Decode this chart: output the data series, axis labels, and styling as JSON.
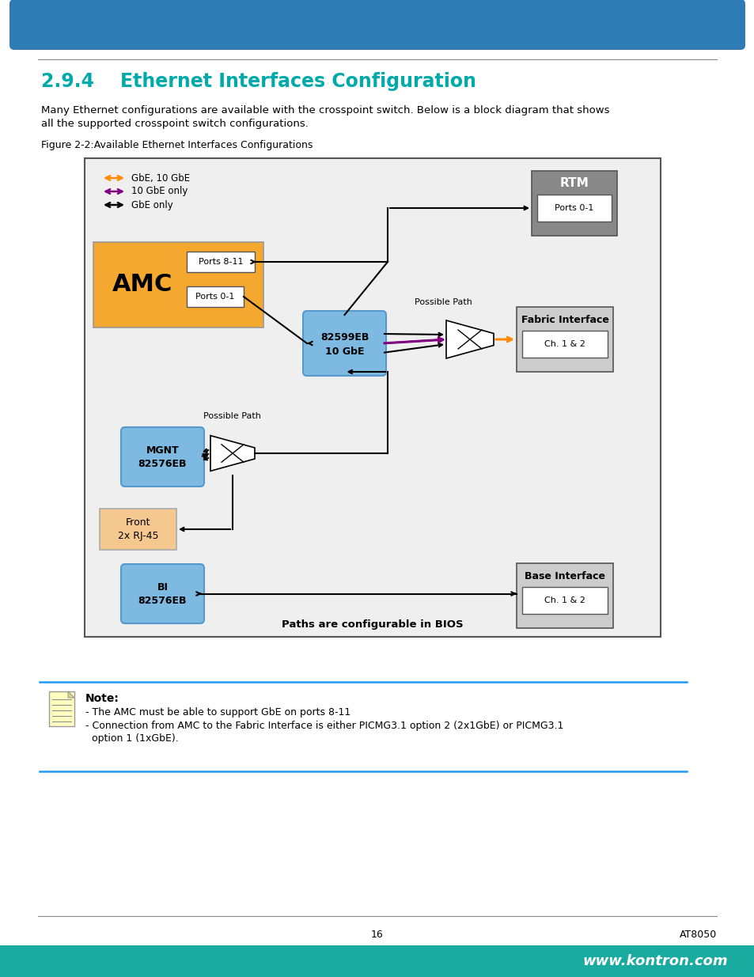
{
  "title": "2.9.4    Ethernet Interfaces Configuration",
  "title_color": "#00AAAA",
  "body_line1": "Many Ethernet configurations are available with the crosspoint switch. Below is a block diagram that shows",
  "body_line2": "all the supported crosspoint switch configurations.",
  "figure_label": "Figure 2-2:Available Ethernet Interfaces Configurations",
  "diagram_bg": "#EFEFEF",
  "legend_items": [
    {
      "label": "GbE, 10 GbE",
      "color": "#FF8C00"
    },
    {
      "label": "10 GbE only",
      "color": "#800080"
    },
    {
      "label": "GbE only",
      "color": "#000000"
    }
  ],
  "note_title": "Note:",
  "note_line1": "- The AMC must be able to support GbE on ports 8-11",
  "note_line2": "- Connection from AMC to the Fabric Interface is either PICMG3.1 option 2 (2x1GbE) or PICMG3.1",
  "note_line3": "  option 1 (1xGbE).",
  "page_number": "16",
  "page_brand": "AT8050",
  "website": "www.kontron.com",
  "top_bar_color": "#2E7BB5",
  "bottom_bar_color": "#1AABA0"
}
